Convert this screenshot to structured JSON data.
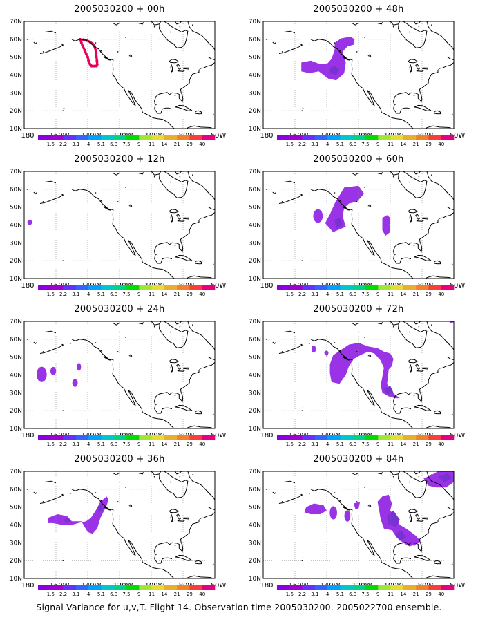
{
  "caption": "Signal Variance for u,v,T. Flight 14. Observation time 2005030200. 2005022700 ensemble.",
  "panels": [
    {
      "title": "2005030200 + 00h"
    },
    {
      "title": "2005030200 + 48h"
    },
    {
      "title": "2005030200 + 12h"
    },
    {
      "title": "2005030200 + 60h"
    },
    {
      "title": "2005030200 + 24h"
    },
    {
      "title": "2005030200 + 72h"
    },
    {
      "title": "2005030200 + 36h"
    },
    {
      "title": "2005030200 + 84h"
    }
  ],
  "lat_labels": [
    "70N",
    "60N",
    "50N",
    "40N",
    "30N",
    "20N",
    "10N"
  ],
  "lon_labels": [
    "180",
    "160W",
    "140W",
    "120W",
    "100W",
    "80W",
    "60W"
  ],
  "colorbar": {
    "labels": [
      "1.6",
      "2.2",
      "3.1",
      "4",
      "5.1",
      "6.3",
      "7.5",
      "9",
      "11",
      "14",
      "21",
      "29",
      "40"
    ],
    "colors": [
      "#8a00e0",
      "#a000d0",
      "#6432ff",
      "#3264ff",
      "#00a0ff",
      "#00c8c8",
      "#00d28c",
      "#00dc00",
      "#a0e632",
      "#e6dc32",
      "#e6af2d",
      "#f08228",
      "#fa3c3c",
      "#e60080"
    ]
  },
  "fill_colors": {
    "light": "#9a32e6",
    "dark": "#7832d2",
    "track": "#e6005a"
  },
  "map": {
    "lat_range": [
      10,
      70
    ],
    "lon_range": [
      "180",
      "60W"
    ],
    "grid": "dotted"
  }
}
